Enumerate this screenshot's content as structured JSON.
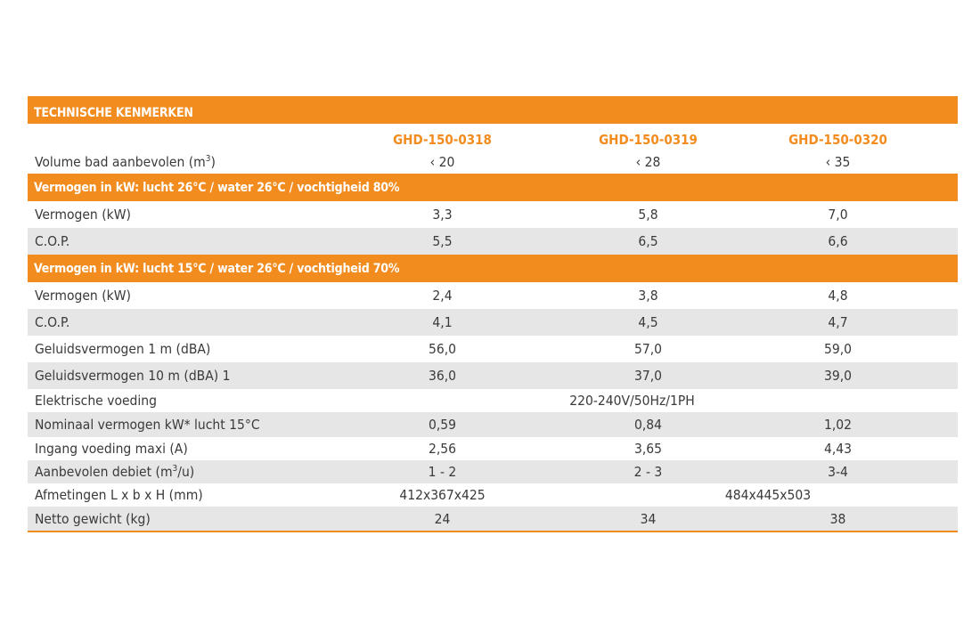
{
  "table": {
    "title": "TECHNISCHE KENMERKEN",
    "models": [
      "GHD-150-0318",
      "GHD-150-0319",
      "GHD-150-0320"
    ],
    "volume": {
      "label_main": "Volume bad aanbevolen (m",
      "label_sup": "3",
      "label_end": ")",
      "values": [
        "‹ 20",
        "‹ 28",
        "‹ 35"
      ]
    },
    "section1": {
      "title": "Vermogen in kW: lucht 26°C / water 26°C / vochtigheid 80%",
      "rows": [
        {
          "label": "Vermogen (kW)",
          "values": [
            "3,3",
            "5,8",
            "7,0"
          ]
        },
        {
          "label": "C.O.P.",
          "values": [
            "5,5",
            "6,5",
            "6,6"
          ]
        }
      ]
    },
    "section2": {
      "title": "Vermogen in kW: lucht 15°C / water 26°C / vochtigheid 70%",
      "rows": [
        {
          "label": "Vermogen (kW)",
          "values": [
            "2,4",
            "3,8",
            "4,8"
          ]
        },
        {
          "label": "C.O.P.",
          "values": [
            "4,1",
            "4,5",
            "4,7"
          ]
        },
        {
          "label": "Geluidsvermogen 1 m (dBA)",
          "values": [
            "56,0",
            "57,0",
            "59,0"
          ]
        },
        {
          "label": "Geluidsvermogen 10 m (dBA) 1",
          "values": [
            "36,0",
            "37,0",
            "39,0"
          ]
        }
      ]
    },
    "power_supply": {
      "label": "Elektrische voeding",
      "value": "220-240V/50Hz/1PH"
    },
    "nominal": {
      "label": "Nominaal vermogen kW* lucht 15°C",
      "values": [
        "0,59",
        "0,84",
        "1,02"
      ]
    },
    "input": {
      "label": "Ingang voeding maxi (A)",
      "values": [
        "2,56",
        "3,65",
        "4,43"
      ]
    },
    "flow": {
      "label_main": "Aanbevolen debiet (m",
      "label_sup": "3",
      "label_end": "/u)",
      "values": [
        "1 - 2",
        "2 - 3",
        "3-4"
      ]
    },
    "dimensions": {
      "label": "Afmetingen L x b x H (mm)",
      "value_first": "412x367x425",
      "value_rest": "484x445x503"
    },
    "weight": {
      "label": "Netto gewicht (kg)",
      "values": [
        "24",
        "34",
        "38"
      ]
    }
  }
}
